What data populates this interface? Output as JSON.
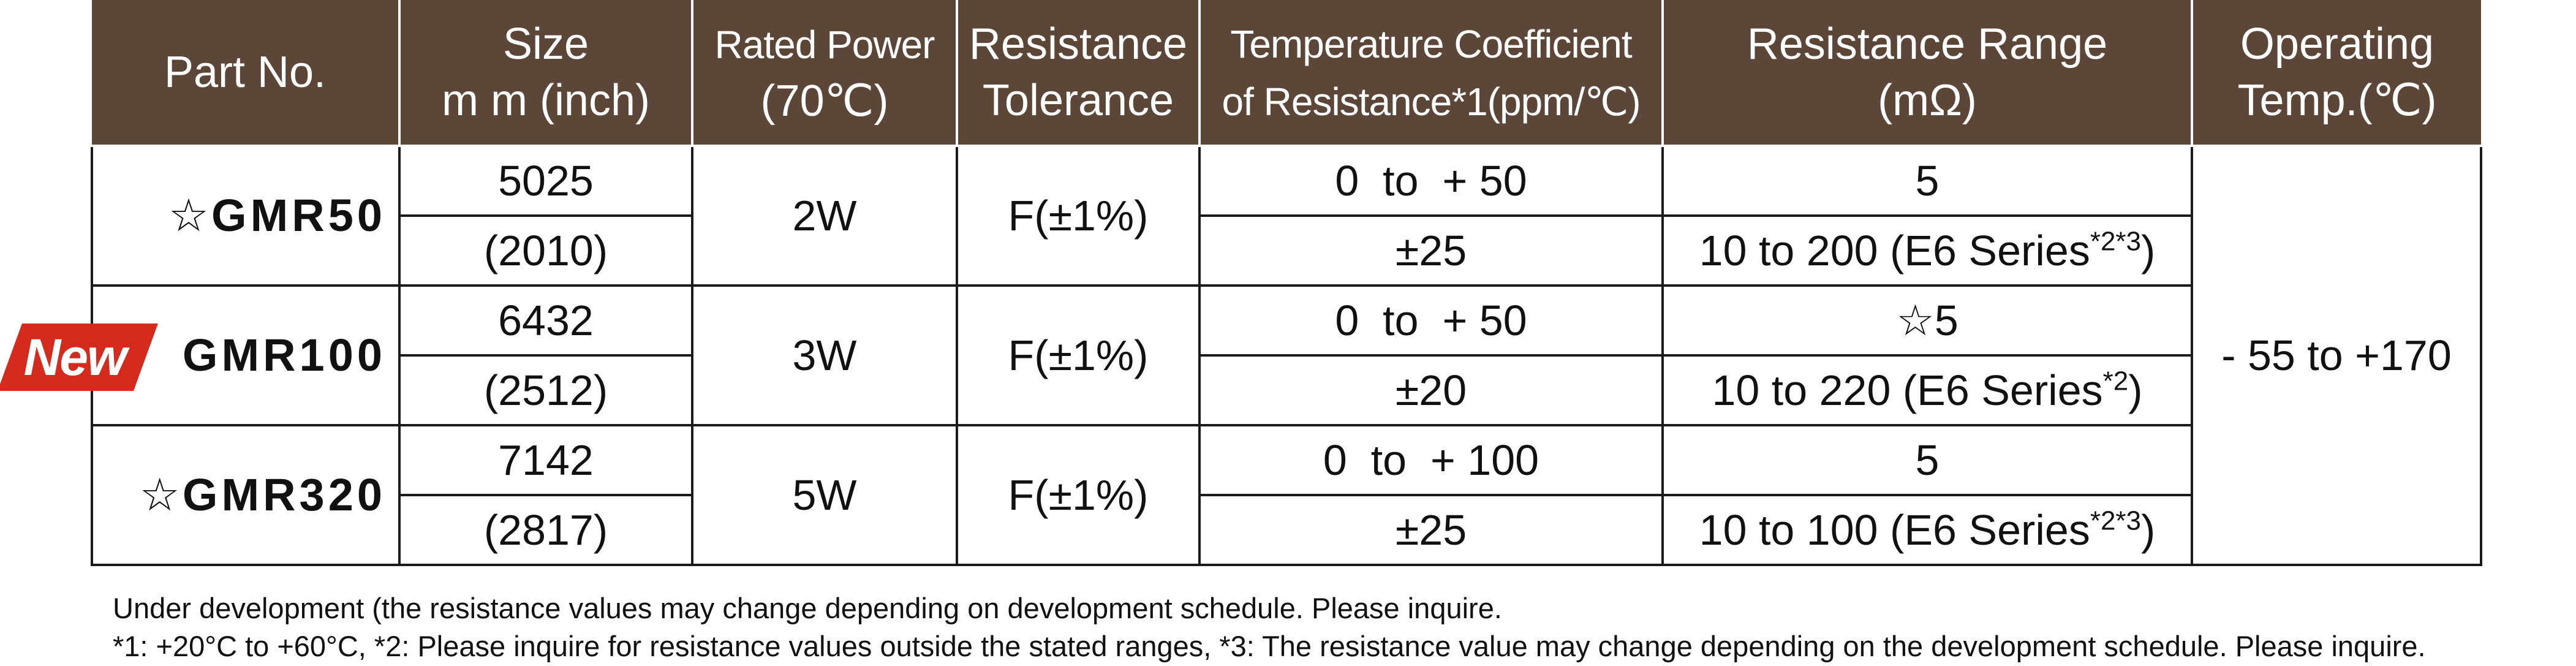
{
  "table": {
    "headers": {
      "part_no": "Part No.",
      "size_l1": "Size",
      "size_l2": "m m (inch)",
      "power_l1": "Rated Power",
      "power_l2": "(70℃)",
      "tol_l1": "Resistance",
      "tol_l2": "Tolerance",
      "tcr_l1": "Temperature Coefficient",
      "tcr_l2": "of Resistance*1(ppm/℃)",
      "range_l1": "Resistance Range",
      "range_l2": "(mΩ)",
      "temp_l1": "Operating",
      "temp_l2": "Temp.(℃)"
    },
    "rows": [
      {
        "star": "☆",
        "part": "GMR50",
        "size_mm": "5025",
        "size_inch": "(2010)",
        "power": "2W",
        "tolerance": "F(±1%)",
        "tcr1": "0  to  + 50",
        "tcr2": "±25",
        "range1": "5",
        "range2_main": "10 to 200 (E6 Series",
        "range2_sup": "*2*3",
        "range2_end": ")"
      },
      {
        "star": "",
        "part": "GMR100",
        "size_mm": "6432",
        "size_inch": "(2512)",
        "power": "3W",
        "tolerance": "F(±1%)",
        "tcr1": "0  to  + 50",
        "tcr2": "±20",
        "range1": "☆5",
        "range2_main": "10 to 220 (E6 Series",
        "range2_sup": "*2",
        "range2_end": ")"
      },
      {
        "star": "☆",
        "part": "GMR320",
        "size_mm": "7142",
        "size_inch": "(2817)",
        "power": "5W",
        "tolerance": "F(±1%)",
        "tcr1": "0  to  + 100",
        "tcr2": "±25",
        "range1": "5",
        "range2_main": "10 to 100 (E6 Series",
        "range2_sup": "*2*3",
        "range2_end": ")"
      }
    ],
    "operating_temp": "- 55 to +170"
  },
  "badge": {
    "text": "New",
    "color": "#d52b1e"
  },
  "header_color": "#5c4638",
  "notes": {
    "line1": "Under development (the resistance values may change depending on development schedule. Please inquire.",
    "line2": "*1: +20°C to +60°C, *2: Please inquire for resistance values outside the stated ranges, *3: The resistance value may change depending on the development schedule. Please inquire."
  }
}
